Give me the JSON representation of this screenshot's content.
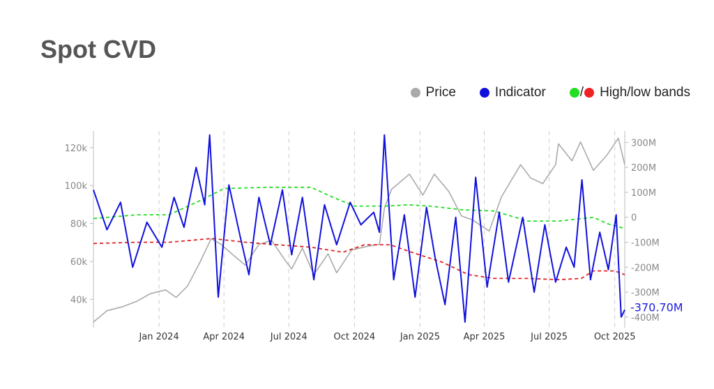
{
  "title": "Spot CVD",
  "legend": {
    "price": "Price",
    "indicator": "Indicator",
    "bands_slash": "/",
    "bands": "High/low bands"
  },
  "colors": {
    "price": "#aaaaaa",
    "indicator": "#1010dd",
    "high_band": "#22dd22",
    "low_band": "#dd2222",
    "grid": "#cccccc"
  },
  "chart_data": {
    "type": "line",
    "title": "Spot CVD",
    "x_range": [
      "2023-10-01",
      "2025-10-15"
    ],
    "x_ticks": [
      {
        "date": "2024-01-01",
        "label": "Jan 2024"
      },
      {
        "date": "2024-04-01",
        "label": "Apr 2024"
      },
      {
        "date": "2024-07-01",
        "label": "Jul 2024"
      },
      {
        "date": "2024-10-01",
        "label": "Oct 2024"
      },
      {
        "date": "2025-01-01",
        "label": "Jan 2025"
      },
      {
        "date": "2025-04-01",
        "label": "Apr 2025"
      },
      {
        "date": "2025-07-01",
        "label": "Jul 2025"
      },
      {
        "date": "2025-10-01",
        "label": "Oct 2025"
      }
    ],
    "y_left": {
      "range": [
        28000,
        128000
      ],
      "ticks": [
        40000,
        60000,
        80000,
        100000,
        120000
      ],
      "tick_labels": [
        "40k",
        "60k",
        "80k",
        "100k",
        "120k"
      ]
    },
    "y_right": {
      "range": [
        -420,
        340
      ],
      "ticks": [
        -400,
        -300,
        -200,
        -100,
        0,
        100,
        200,
        300
      ],
      "tick_labels": [
        "-400M",
        "-300M",
        "-200M",
        "-100M",
        "0",
        "100M",
        "200M",
        "300M"
      ]
    },
    "last_value_label": "-370.70M",
    "series": [
      {
        "name": "Price",
        "axis": "left",
        "points": [
          [
            "2023-10-01",
            28000
          ],
          [
            "2023-10-20",
            34000
          ],
          [
            "2023-11-10",
            36000
          ],
          [
            "2023-12-01",
            39000
          ],
          [
            "2023-12-20",
            43000
          ],
          [
            "2024-01-10",
            45000
          ],
          [
            "2024-01-25",
            41000
          ],
          [
            "2024-02-10",
            47000
          ],
          [
            "2024-02-28",
            60000
          ],
          [
            "2024-03-14",
            72000
          ],
          [
            "2024-03-28",
            69000
          ],
          [
            "2024-04-15",
            63000
          ],
          [
            "2024-05-01",
            58000
          ],
          [
            "2024-05-20",
            69000
          ],
          [
            "2024-06-07",
            71000
          ],
          [
            "2024-06-25",
            61000
          ],
          [
            "2024-07-05",
            56000
          ],
          [
            "2024-07-20",
            67000
          ],
          [
            "2024-08-05",
            53000
          ],
          [
            "2024-08-25",
            64000
          ],
          [
            "2024-09-06",
            54000
          ],
          [
            "2024-09-27",
            66000
          ],
          [
            "2024-10-20",
            68000
          ],
          [
            "2024-11-05",
            69000
          ],
          [
            "2024-11-12",
            88000
          ],
          [
            "2024-11-22",
            98000
          ],
          [
            "2024-12-17",
            106000
          ],
          [
            "2025-01-05",
            95000
          ],
          [
            "2025-01-21",
            106000
          ],
          [
            "2025-02-10",
            97000
          ],
          [
            "2025-02-28",
            84000
          ],
          [
            "2025-03-15",
            82000
          ],
          [
            "2025-04-08",
            76000
          ],
          [
            "2025-04-25",
            94000
          ],
          [
            "2025-05-22",
            111000
          ],
          [
            "2025-06-05",
            104000
          ],
          [
            "2025-06-22",
            101000
          ],
          [
            "2025-07-10",
            111000
          ],
          [
            "2025-07-14",
            122000
          ],
          [
            "2025-08-02",
            113000
          ],
          [
            "2025-08-14",
            123000
          ],
          [
            "2025-09-01",
            108000
          ],
          [
            "2025-09-20",
            116000
          ],
          [
            "2025-10-06",
            125000
          ],
          [
            "2025-10-15",
            111000
          ]
        ]
      },
      {
        "name": "Indicator",
        "axis": "right",
        "points": [
          [
            "2023-10-01",
            110
          ],
          [
            "2023-10-20",
            -50
          ],
          [
            "2023-11-08",
            60
          ],
          [
            "2023-11-25",
            -200
          ],
          [
            "2023-12-15",
            -20
          ],
          [
            "2024-01-05",
            -120
          ],
          [
            "2024-01-22",
            80
          ],
          [
            "2024-02-05",
            -40
          ],
          [
            "2024-02-22",
            200
          ],
          [
            "2024-03-05",
            50
          ],
          [
            "2024-03-12",
            330
          ],
          [
            "2024-03-24",
            -320
          ],
          [
            "2024-04-08",
            130
          ],
          [
            "2024-04-24",
            -80
          ],
          [
            "2024-05-06",
            -230
          ],
          [
            "2024-05-20",
            80
          ],
          [
            "2024-06-05",
            -110
          ],
          [
            "2024-06-22",
            110
          ],
          [
            "2024-07-05",
            -150
          ],
          [
            "2024-07-20",
            80
          ],
          [
            "2024-08-05",
            -250
          ],
          [
            "2024-08-20",
            50
          ],
          [
            "2024-09-06",
            -110
          ],
          [
            "2024-09-25",
            60
          ],
          [
            "2024-10-10",
            -30
          ],
          [
            "2024-10-28",
            20
          ],
          [
            "2024-11-05",
            -60
          ],
          [
            "2024-11-12",
            330
          ],
          [
            "2024-11-25",
            -250
          ],
          [
            "2024-12-10",
            10
          ],
          [
            "2024-12-25",
            -320
          ],
          [
            "2025-01-10",
            40
          ],
          [
            "2025-01-22",
            -160
          ],
          [
            "2025-02-05",
            -350
          ],
          [
            "2025-02-20",
            0
          ],
          [
            "2025-03-05",
            -420
          ],
          [
            "2025-03-20",
            160
          ],
          [
            "2025-04-05",
            -280
          ],
          [
            "2025-04-22",
            20
          ],
          [
            "2025-05-05",
            -260
          ],
          [
            "2025-05-25",
            0
          ],
          [
            "2025-06-10",
            -300
          ],
          [
            "2025-06-25",
            -30
          ],
          [
            "2025-07-10",
            -260
          ],
          [
            "2025-07-25",
            -120
          ],
          [
            "2025-08-05",
            -200
          ],
          [
            "2025-08-16",
            150
          ],
          [
            "2025-08-28",
            -250
          ],
          [
            "2025-09-10",
            -60
          ],
          [
            "2025-09-22",
            -210
          ],
          [
            "2025-10-03",
            10
          ],
          [
            "2025-10-10",
            -400
          ],
          [
            "2025-10-15",
            -370.7
          ]
        ]
      },
      {
        "name": "High band",
        "axis": "right",
        "points": [
          [
            "2023-10-01",
            -5
          ],
          [
            "2023-12-01",
            10
          ],
          [
            "2024-01-15",
            10
          ],
          [
            "2024-03-01",
            70
          ],
          [
            "2024-04-01",
            115
          ],
          [
            "2024-06-01",
            120
          ],
          [
            "2024-08-01",
            120
          ],
          [
            "2024-09-01",
            80
          ],
          [
            "2024-10-01",
            45
          ],
          [
            "2024-11-15",
            45
          ],
          [
            "2024-12-15",
            50
          ],
          [
            "2025-01-15",
            45
          ],
          [
            "2025-03-01",
            30
          ],
          [
            "2025-04-15",
            25
          ],
          [
            "2025-06-01",
            -15
          ],
          [
            "2025-07-15",
            -15
          ],
          [
            "2025-09-01",
            0
          ],
          [
            "2025-09-20",
            -25
          ],
          [
            "2025-10-15",
            -45
          ]
        ]
      },
      {
        "name": "Low band",
        "axis": "right",
        "points": [
          [
            "2023-10-01",
            -105
          ],
          [
            "2023-12-01",
            -100
          ],
          [
            "2024-01-15",
            -100
          ],
          [
            "2024-03-15",
            -85
          ],
          [
            "2024-05-01",
            -100
          ],
          [
            "2024-06-15",
            -110
          ],
          [
            "2024-08-01",
            -120
          ],
          [
            "2024-09-15",
            -140
          ],
          [
            "2024-10-15",
            -110
          ],
          [
            "2024-11-20",
            -110
          ],
          [
            "2024-12-20",
            -140
          ],
          [
            "2025-02-01",
            -180
          ],
          [
            "2025-03-10",
            -230
          ],
          [
            "2025-04-15",
            -245
          ],
          [
            "2025-06-01",
            -245
          ],
          [
            "2025-07-15",
            -250
          ],
          [
            "2025-08-15",
            -245
          ],
          [
            "2025-09-01",
            -215
          ],
          [
            "2025-10-01",
            -215
          ],
          [
            "2025-10-15",
            -230
          ]
        ]
      }
    ]
  }
}
